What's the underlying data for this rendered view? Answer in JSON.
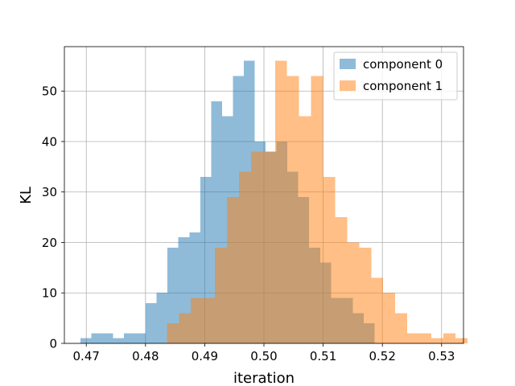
{
  "chart_data": {
    "type": "bar",
    "xlabel": "iteration",
    "ylabel": "KL",
    "xlim": [
      0.4663,
      0.5337
    ],
    "ylim": [
      0,
      58.8
    ],
    "xticks": [
      0.47,
      0.48,
      0.49,
      0.5,
      0.51,
      0.52,
      0.53
    ],
    "xtick_labels": [
      "0.47",
      "0.48",
      "0.49",
      "0.50",
      "0.51",
      "0.52",
      "0.53"
    ],
    "yticks": [
      0,
      10,
      20,
      30,
      40,
      50
    ],
    "ytick_labels": [
      "0",
      "10",
      "20",
      "30",
      "40",
      "50"
    ],
    "grid": true,
    "legend_position": "top-right",
    "series": [
      {
        "name": "component 0",
        "color": "#1f77b4",
        "opacity": 0.5,
        "bin_start": 0.469,
        "bin_width": 0.00184,
        "counts": [
          1,
          2,
          2,
          1,
          2,
          2,
          8,
          10,
          19,
          21,
          22,
          33,
          48,
          45,
          53,
          56,
          40,
          38,
          40,
          34,
          29,
          19,
          16,
          9,
          9,
          6,
          4
        ]
      },
      {
        "name": "component 1",
        "color": "#ff7f0e",
        "opacity": 0.5,
        "bin_start": 0.4836,
        "bin_width": 0.00203,
        "counts": [
          4,
          6,
          9,
          9,
          19,
          29,
          34,
          38,
          38,
          56,
          53,
          45,
          53,
          33,
          25,
          20,
          19,
          13,
          10,
          6,
          2,
          2,
          1,
          2,
          1
        ]
      }
    ]
  }
}
